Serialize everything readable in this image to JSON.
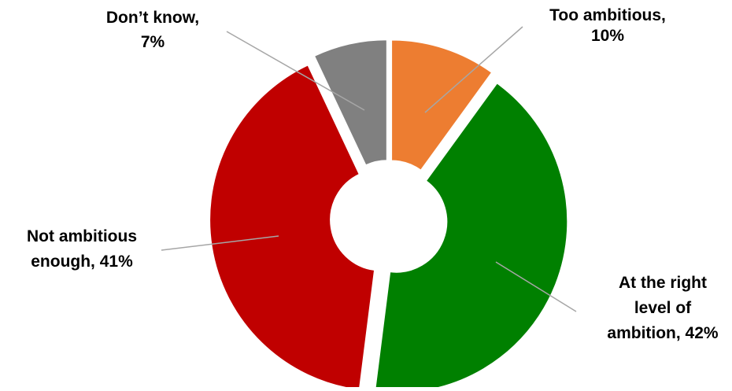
{
  "chart_data": {
    "type": "pie",
    "title": "",
    "donut": true,
    "exploded": true,
    "start": "top",
    "direction": "clockwise",
    "slices": [
      {
        "label": "Too ambitious",
        "value": 10,
        "display_lines": [
          "Too ambitious,",
          "10%"
        ],
        "color": "#ED7D31"
      },
      {
        "label": "At the right level of ambition",
        "value": 42,
        "display_lines": [
          "At the right",
          "level of",
          "ambition, 42%"
        ],
        "color": "#008000"
      },
      {
        "label": "Not ambitious enough",
        "value": 41,
        "display_lines": [
          "Not ambitious",
          "enough, 41%"
        ],
        "color": "#C00000"
      },
      {
        "label": "Don’t know",
        "value": 7,
        "display_lines": [
          "Don’t know,",
          "7%"
        ],
        "color": "#808080"
      }
    ],
    "leader_line_color": "#A6A6A6",
    "legend": "none"
  }
}
